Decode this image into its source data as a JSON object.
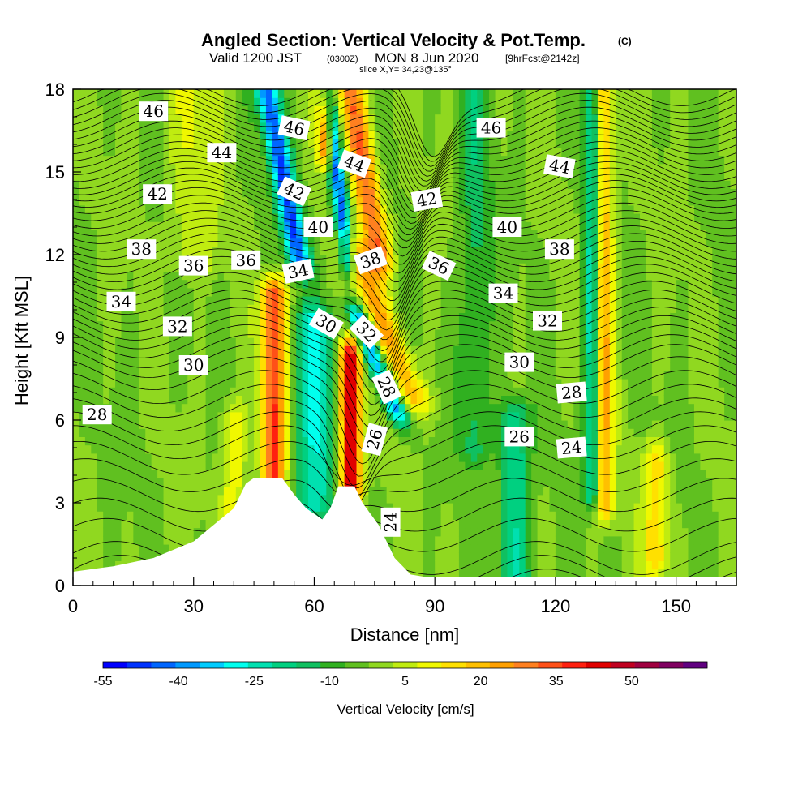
{
  "chart_data": {
    "type": "heatmap",
    "title": "Angled Section: Vertical Velocity & Pot.Temp.",
    "title_mark": "(C)",
    "subtitle": {
      "valid": "Valid 1200 JST",
      "utc": "(0300Z)",
      "date": "MON 8 Jun 2020",
      "forecast": "[9hrFcst@2142z]",
      "slice": "slice X,Y= 34,23@135°"
    },
    "xlabel": "Distance [nm]",
    "ylabel": "Height [Kft MSL]",
    "xlim": [
      0,
      165
    ],
    "ylim": [
      0,
      18
    ],
    "x_ticks": [
      "0",
      "30",
      "60",
      "90",
      "120",
      "150"
    ],
    "x_tick_values": [
      0,
      30,
      60,
      90,
      120,
      150
    ],
    "y_ticks": [
      "0",
      "3",
      "6",
      "9",
      "12",
      "15",
      "18"
    ],
    "y_tick_values": [
      0,
      3,
      6,
      9,
      12,
      15,
      18
    ],
    "grid": false,
    "shaded_variable": "Vertical Velocity [cm/s]",
    "colorbar": {
      "label": "Vertical Velocity [cm/s]",
      "tick_labels": [
        "-55",
        "-40",
        "-25",
        "-10",
        "5",
        "20",
        "35",
        "50"
      ],
      "tick_values": [
        -55,
        -40,
        -25,
        -10,
        5,
        20,
        35,
        50
      ],
      "range": [
        -55,
        65
      ],
      "step": 5,
      "colors": [
        "#0000ff",
        "#0033ff",
        "#0066ff",
        "#0099ff",
        "#00ccff",
        "#00ffee",
        "#00e0b0",
        "#00d080",
        "#10c060",
        "#30b020",
        "#60c020",
        "#90d820",
        "#c0ec10",
        "#f0f800",
        "#ffe000",
        "#ffc000",
        "#ffa000",
        "#ff8020",
        "#ff5018",
        "#ff2010",
        "#e00000",
        "#c00020",
        "#a00040",
        "#800060",
        "#600080"
      ]
    },
    "velocity_features": [
      {
        "x": 50,
        "bottom": 3.2,
        "top": 10.5,
        "peak": 40,
        "width": 3,
        "tilt": 0
      },
      {
        "x": 69,
        "bottom": 3.6,
        "top": 8.2,
        "peak": 55,
        "width": 2.5,
        "tilt": 0
      },
      {
        "x": 60,
        "bottom": 3.0,
        "top": 9.5,
        "peak": -25,
        "width": 5,
        "tilt": 0
      },
      {
        "x": 68,
        "bottom": 12.0,
        "top": 18.0,
        "peak": -45,
        "width": 2,
        "tilt": -0.8
      },
      {
        "x": 63,
        "bottom": 16.0,
        "top": 18.0,
        "peak": 40,
        "width": 2,
        "tilt": 0
      },
      {
        "x": 56,
        "bottom": 12.0,
        "top": 18.0,
        "peak": -45,
        "width": 2.8,
        "tilt": -1.3
      },
      {
        "x": 84,
        "bottom": 7.0,
        "top": 12.0,
        "peak": 25,
        "width": 4,
        "tilt": -2.8
      },
      {
        "x": 76,
        "bottom": 12.0,
        "top": 18.0,
        "peak": 35,
        "width": 3.5,
        "tilt": -1.2
      },
      {
        "x": 80,
        "bottom": 6.5,
        "top": 9.5,
        "peak": -40,
        "width": 2.5,
        "tilt": -2.8
      },
      {
        "x": 132,
        "bottom": 3.0,
        "top": 18.0,
        "peak": 25,
        "width": 2.5,
        "tilt": 0
      },
      {
        "x": 129,
        "bottom": 3.5,
        "top": 18.0,
        "peak": -25,
        "width": 2,
        "tilt": 0
      },
      {
        "x": 145,
        "bottom": 1.0,
        "top": 4.5,
        "peak": 20,
        "width": 3,
        "tilt": 0
      },
      {
        "x": 110,
        "bottom": 0.5,
        "top": 6.0,
        "peak": -20,
        "width": 4,
        "tilt": 0
      },
      {
        "x": 100,
        "bottom": 5.0,
        "top": 18.0,
        "peak": -12,
        "width": 4,
        "tilt": 0
      },
      {
        "x": 40,
        "bottom": 2.0,
        "top": 6.0,
        "peak": 15,
        "width": 3,
        "tilt": 0
      },
      {
        "x": 30,
        "bottom": 12.0,
        "top": 18.0,
        "peak": 10,
        "width": 6,
        "tilt": 0
      }
    ],
    "terrain": [
      [
        0,
        0.5
      ],
      [
        10,
        0.7
      ],
      [
        20,
        1.0
      ],
      [
        30,
        1.6
      ],
      [
        40,
        2.8
      ],
      [
        43,
        3.7
      ],
      [
        45,
        3.9
      ],
      [
        52,
        3.9
      ],
      [
        55,
        3.3
      ],
      [
        58,
        2.8
      ],
      [
        62,
        2.4
      ],
      [
        64,
        2.8
      ],
      [
        66,
        3.6
      ],
      [
        70,
        3.6
      ],
      [
        72,
        3.0
      ],
      [
        76,
        2.2
      ],
      [
        80,
        1.0
      ],
      [
        84,
        0.4
      ],
      [
        88,
        0.3
      ],
      [
        165,
        0.3
      ]
    ],
    "contour_levels": [
      24,
      26,
      28,
      30,
      32,
      34,
      36,
      38,
      40,
      42,
      44,
      46
    ],
    "theta_profile": [
      [
        0,
        22
      ],
      [
        1,
        23
      ],
      [
        2,
        23.6
      ],
      [
        3,
        24.3
      ],
      [
        4,
        25
      ],
      [
        5,
        25.8
      ],
      [
        6,
        26.8
      ],
      [
        7,
        27.8
      ],
      [
        8,
        28.8
      ],
      [
        9,
        30.2
      ],
      [
        10,
        31.8
      ],
      [
        11,
        33.4
      ],
      [
        12,
        35.2
      ],
      [
        13,
        37.0
      ],
      [
        14,
        38.8
      ],
      [
        15,
        41.0
      ],
      [
        16,
        43.0
      ],
      [
        17,
        45.0
      ],
      [
        18,
        47.0
      ]
    ],
    "contour_labels": [
      {
        "x": 20,
        "y": 17.2,
        "text": "46",
        "angle": 0
      },
      {
        "x": 37,
        "y": 15.7,
        "text": "44",
        "angle": 0
      },
      {
        "x": 21,
        "y": 14.2,
        "text": "42",
        "angle": 0
      },
      {
        "x": 17,
        "y": 12.2,
        "text": "38",
        "angle": 0
      },
      {
        "x": 30,
        "y": 11.6,
        "text": "36",
        "angle": 0
      },
      {
        "x": 43,
        "y": 11.8,
        "text": "36",
        "angle": 0
      },
      {
        "x": 12,
        "y": 10.3,
        "text": "34",
        "angle": 0
      },
      {
        "x": 26,
        "y": 9.4,
        "text": "32",
        "angle": 0
      },
      {
        "x": 30,
        "y": 8.0,
        "text": "30",
        "angle": 0
      },
      {
        "x": 6,
        "y": 6.2,
        "text": "28",
        "angle": 0
      },
      {
        "x": 55,
        "y": 16.6,
        "text": "46",
        "angle": 12
      },
      {
        "x": 70,
        "y": 15.3,
        "text": "44",
        "angle": 20
      },
      {
        "x": 55,
        "y": 14.3,
        "text": "42",
        "angle": 25
      },
      {
        "x": 61,
        "y": 13.0,
        "text": "40",
        "angle": 0
      },
      {
        "x": 56,
        "y": 11.4,
        "text": "34",
        "angle": -12
      },
      {
        "x": 63,
        "y": 9.5,
        "text": "30",
        "angle": 30
      },
      {
        "x": 73,
        "y": 9.2,
        "text": "32",
        "angle": 45
      },
      {
        "x": 74,
        "y": 11.8,
        "text": "38",
        "angle": -20
      },
      {
        "x": 78,
        "y": 7.2,
        "text": "28",
        "angle": 65
      },
      {
        "x": 75,
        "y": 5.3,
        "text": "26",
        "angle": -75
      },
      {
        "x": 79,
        "y": 2.3,
        "text": "24",
        "angle": -90
      },
      {
        "x": 88,
        "y": 14.0,
        "text": "42",
        "angle": -10
      },
      {
        "x": 91,
        "y": 11.6,
        "text": "36",
        "angle": 25
      },
      {
        "x": 104,
        "y": 16.6,
        "text": "46",
        "angle": 0
      },
      {
        "x": 108,
        "y": 13.0,
        "text": "40",
        "angle": 0
      },
      {
        "x": 121,
        "y": 15.2,
        "text": "44",
        "angle": 10
      },
      {
        "x": 107,
        "y": 10.6,
        "text": "34",
        "angle": 0
      },
      {
        "x": 121,
        "y": 12.2,
        "text": "38",
        "angle": 0
      },
      {
        "x": 118,
        "y": 9.6,
        "text": "32",
        "angle": 0
      },
      {
        "x": 111,
        "y": 8.1,
        "text": "30",
        "angle": 0
      },
      {
        "x": 124,
        "y": 7.0,
        "text": "28",
        "angle": -5
      },
      {
        "x": 111,
        "y": 5.4,
        "text": "26",
        "angle": 0
      },
      {
        "x": 124,
        "y": 5.0,
        "text": "24",
        "angle": -5
      }
    ]
  }
}
